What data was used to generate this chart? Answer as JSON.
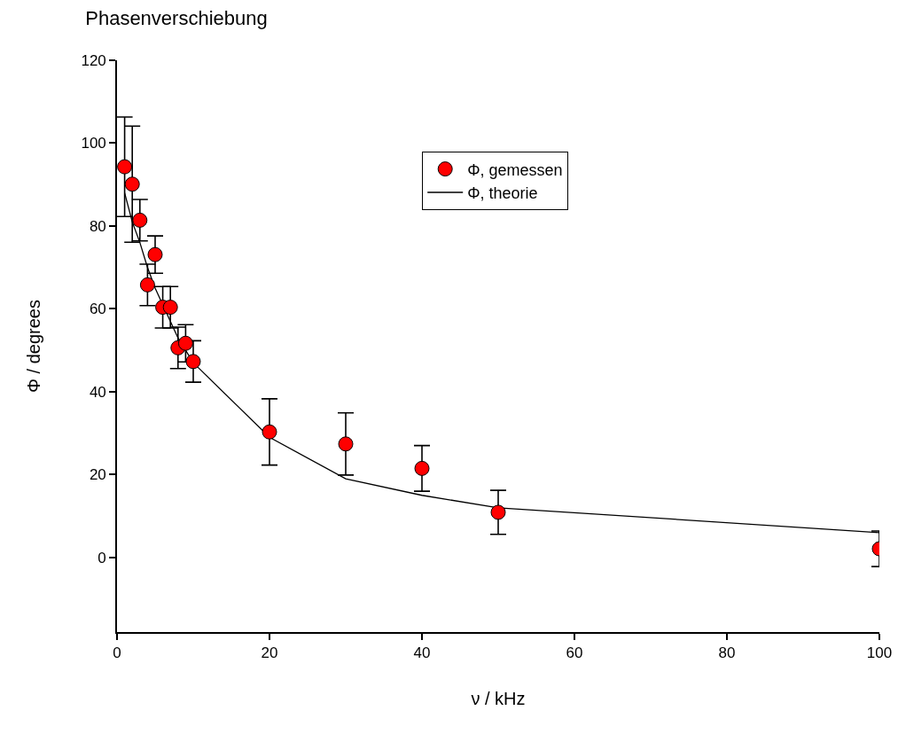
{
  "chart_data": {
    "type": "scatter",
    "title": "Phasenverschiebung",
    "xlabel": "ν / kHz",
    "ylabel": "Φ / degrees",
    "xlim": [
      0,
      100
    ],
    "ylim": [
      -18,
      120
    ],
    "xticks": [
      0,
      20,
      40,
      60,
      80,
      100
    ],
    "yticks": [
      0,
      20,
      40,
      60,
      80,
      100,
      120
    ],
    "grid": false,
    "legend": "top right",
    "marker": "circle",
    "series": [
      {
        "name": "Φ, gemessen",
        "color": "#ff0000",
        "x": [
          1,
          2,
          3,
          4,
          5,
          6,
          7,
          8,
          9,
          10,
          20,
          30,
          40,
          50,
          100
        ],
        "values": [
          94.3,
          90.1,
          81.4,
          65.8,
          73.1,
          60.4,
          60.4,
          50.6,
          51.7,
          47.3,
          30.3,
          27.4,
          21.5,
          10.9,
          2.1
        ],
        "errors": [
          12,
          14,
          5,
          5,
          4.5,
          5,
          5,
          5,
          4.5,
          5,
          8,
          7.5,
          5.5,
          5.3,
          4.3
        ]
      },
      {
        "name": "Φ, theorie",
        "type": "line",
        "color": "#000000",
        "marker": "none",
        "line_style": "solid",
        "x": [
          1,
          2,
          3,
          4,
          5,
          6,
          7,
          8,
          9,
          10,
          20,
          30,
          40,
          50,
          100
        ],
        "values": [
          88,
          81,
          76,
          70,
          65,
          61,
          57,
          53,
          50,
          47,
          29,
          19,
          15,
          12,
          6
        ]
      }
    ]
  }
}
